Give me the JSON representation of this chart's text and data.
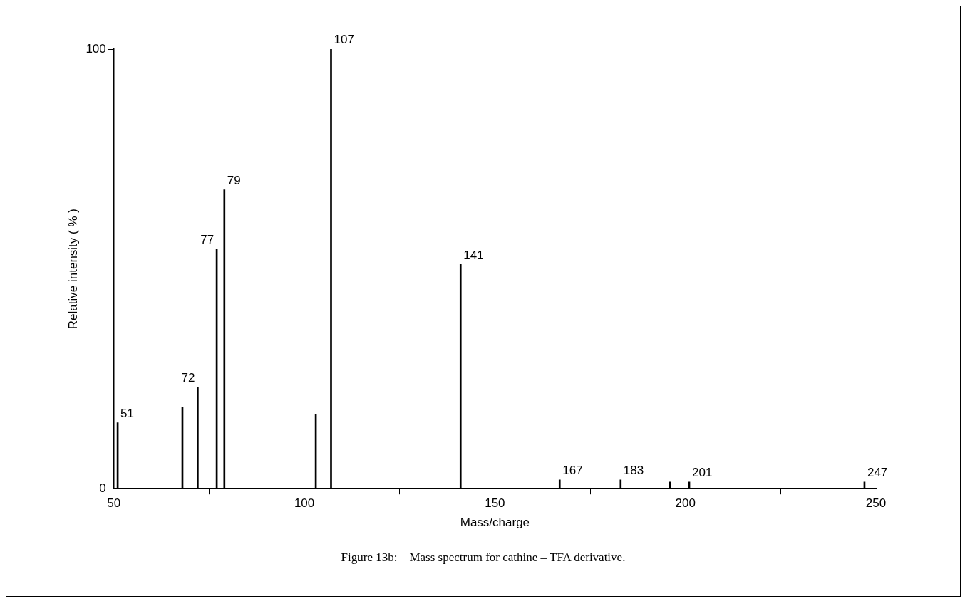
{
  "chart_data": {
    "type": "bar",
    "xlabel": "Mass/charge",
    "ylabel": "Relative intensity ( % )",
    "annotations": [
      "Figure 13b:    Mass spectrum for cathine – TFA derivative.",
      {
        "text": "51",
        "x": 51,
        "y": 15
      },
      {
        "text": "72",
        "x": 72,
        "y": 23
      },
      {
        "text": "77",
        "x": 77,
        "y": 54.5
      },
      {
        "text": "79",
        "x": 79,
        "y": 68
      },
      {
        "text": "107",
        "x": 107,
        "y": 100
      },
      {
        "text": "141",
        "x": 141,
        "y": 51
      },
      {
        "text": "167",
        "x": 167,
        "y": 2
      },
      {
        "text": "183",
        "x": 183,
        "y": 2
      },
      {
        "text": "201",
        "x": 201,
        "y": 1.5
      },
      {
        "text": "247",
        "x": 247,
        "y": 1.5
      }
    ],
    "x": [
      51,
      68,
      72,
      77,
      79,
      103,
      107,
      141,
      167,
      183,
      196,
      201,
      247
    ],
    "values": [
      15,
      18.5,
      23,
      54.5,
      68,
      17,
      100,
      51,
      2,
      2,
      1.5,
      1.5,
      1.5
    ],
    "color": "#000000",
    "xlim": [
      50,
      250
    ],
    "xticks": [
      50,
      100,
      150,
      200,
      250
    ],
    "ylim": [
      0,
      100
    ],
    "yticks": [
      0,
      100
    ],
    "grid": false,
    "legend": false
  }
}
